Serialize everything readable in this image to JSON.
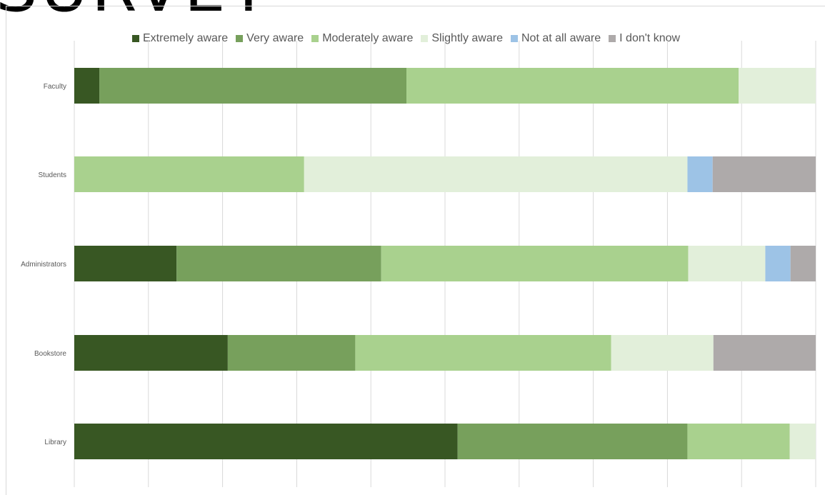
{
  "slide": {
    "title": "SURVEY"
  },
  "chart_data": {
    "type": "bar",
    "orientation": "horizontal",
    "stacked": "percent",
    "title": "",
    "xlabel": "",
    "ylabel": "",
    "xlim": [
      0,
      100
    ],
    "grid": true,
    "legend_position": "top",
    "categories": [
      "Faculty",
      "Students",
      "Administrators",
      "Bookstore",
      "Library"
    ],
    "series": [
      {
        "name": "Extremely aware",
        "color": "#385723",
        "values": [
          3.4,
          0,
          13.8,
          20.7,
          51.7
        ]
      },
      {
        "name": "Very aware",
        "color": "#77a05c",
        "values": [
          41.4,
          0,
          27.6,
          17.2,
          31.0
        ]
      },
      {
        "name": "Moderately aware",
        "color": "#a9d18e",
        "values": [
          44.8,
          31.0,
          41.4,
          34.5,
          13.8
        ]
      },
      {
        "name": "Slightly aware",
        "color": "#e2efda",
        "values": [
          10.4,
          51.7,
          10.4,
          13.8,
          3.5
        ]
      },
      {
        "name": "Not at all aware",
        "color": "#9dc3e6",
        "values": [
          0,
          3.4,
          3.4,
          0,
          0
        ]
      },
      {
        "name": "I don't know",
        "color": "#aeaaaa",
        "values": [
          0,
          13.9,
          3.4,
          13.8,
          0
        ]
      }
    ]
  }
}
